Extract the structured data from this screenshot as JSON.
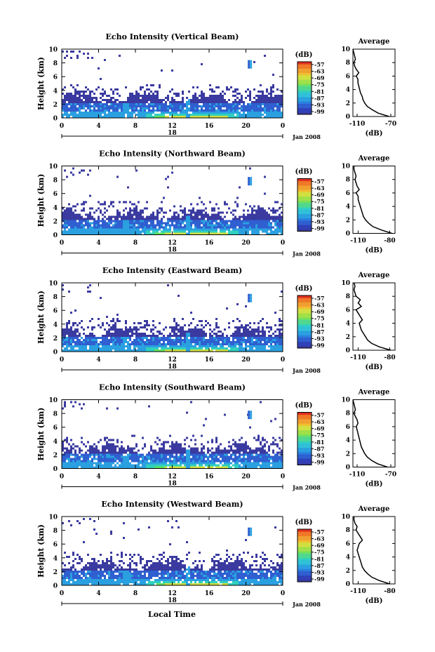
{
  "figure": {
    "xlabel": "Local Time",
    "date_label": "Jan 2008",
    "cbar_unit": "(dB)",
    "cbar_ticks": [
      "-57",
      "-63",
      "-69",
      "-75",
      "-81",
      "-87",
      "-93",
      "-99"
    ],
    "avg_title": "Average",
    "avg_xlabel": "(dB)",
    "colors": [
      "#3a3aa0",
      "#2f5fd0",
      "#2aa0e0",
      "#30d0c0",
      "#60e060",
      "#d0e040",
      "#f0a030",
      "#e03020"
    ]
  },
  "chart_data": [
    {
      "type": "heatmap",
      "title": "Echo Intensity (Vertical Beam)",
      "ylabel": "Height (km)",
      "day": "18",
      "x_ticks": [
        "0",
        "4",
        "8",
        "12",
        "16",
        "20",
        "0"
      ],
      "y_ticks": [
        "0",
        "2",
        "4",
        "6",
        "8",
        "10"
      ],
      "xlim": [
        0,
        24
      ],
      "ylim": [
        0,
        10
      ],
      "zlim": [
        -99,
        -57
      ],
      "average_profile": {
        "x_ticks": [
          "-110",
          "-70"
        ],
        "xlim": [
          -115,
          -65
        ],
        "heights": [
          0,
          0.5,
          1,
          1.5,
          2,
          2.5,
          3,
          3.5,
          4,
          4.5,
          5,
          5.5,
          6,
          6.5,
          7,
          7.5,
          8,
          8.5,
          9,
          9.5,
          10
        ],
        "values": [
          -72,
          -85,
          -92,
          -98,
          -101,
          -103,
          -104,
          -106,
          -107,
          -108,
          -109,
          -109,
          -111,
          -108,
          -111,
          -113,
          -114,
          -112,
          -113,
          -114,
          -115
        ]
      }
    },
    {
      "type": "heatmap",
      "title": "Echo Intensity (Northward Beam)",
      "ylabel": "Height (km)",
      "day": "18",
      "x_ticks": [
        "0",
        "4",
        "8",
        "12",
        "16",
        "20",
        "0"
      ],
      "y_ticks": [
        "0",
        "2",
        "4",
        "6",
        "8",
        "10"
      ],
      "xlim": [
        0,
        24
      ],
      "ylim": [
        0,
        10
      ],
      "zlim": [
        -99,
        -57
      ],
      "average_profile": {
        "x_ticks": [
          "-110",
          "-80"
        ],
        "xlim": [
          -115,
          -75
        ],
        "heights": [
          0,
          0.5,
          1,
          1.5,
          2,
          2.5,
          3,
          3.5,
          4,
          4.5,
          5,
          5.5,
          6,
          6.5,
          7,
          7.5,
          8,
          8.5,
          9,
          9.5,
          10
        ],
        "values": [
          -78,
          -88,
          -96,
          -100,
          -103,
          -105,
          -106,
          -107,
          -108,
          -109,
          -110,
          -110,
          -112,
          -109,
          -111,
          -112,
          -113,
          -112,
          -113,
          -114,
          -114
        ]
      }
    },
    {
      "type": "heatmap",
      "title": "Echo Intensity (Eastward Beam)",
      "ylabel": "Height (km)",
      "day": "18",
      "x_ticks": [
        "0",
        "4",
        "8",
        "12",
        "16",
        "20",
        "0"
      ],
      "y_ticks": [
        "0",
        "2",
        "4",
        "6",
        "8",
        "10"
      ],
      "xlim": [
        0,
        24
      ],
      "ylim": [
        0,
        10
      ],
      "zlim": [
        -99,
        -57
      ],
      "average_profile": {
        "x_ticks": [
          "-110",
          "-80"
        ],
        "xlim": [
          -115,
          -75
        ],
        "heights": [
          0,
          0.5,
          1,
          1.5,
          2,
          2.5,
          3,
          3.5,
          4,
          4.5,
          5,
          5.5,
          6,
          6.5,
          7,
          7.5,
          8,
          8.5,
          9,
          9.5,
          10
        ],
        "values": [
          -79,
          -90,
          -97,
          -101,
          -103,
          -105,
          -107,
          -108,
          -109,
          -106,
          -108,
          -110,
          -112,
          -107,
          -110,
          -108,
          -112,
          -113,
          -114,
          -113,
          -114
        ]
      }
    },
    {
      "type": "heatmap",
      "title": "Echo Intensity (Southward Beam)",
      "ylabel": "Height (km)",
      "day": "18",
      "x_ticks": [
        "0",
        "4",
        "8",
        "12",
        "16",
        "20",
        "0"
      ],
      "y_ticks": [
        "0",
        "2",
        "4",
        "6",
        "8",
        "10"
      ],
      "xlim": [
        0,
        24
      ],
      "ylim": [
        0,
        10
      ],
      "zlim": [
        -99,
        -57
      ],
      "average_profile": {
        "x_ticks": [
          "-110",
          "-70"
        ],
        "xlim": [
          -115,
          -65
        ],
        "heights": [
          0,
          0.5,
          1,
          1.5,
          2,
          2.5,
          3,
          3.5,
          4,
          4.5,
          5,
          5.5,
          6,
          6.5,
          7,
          7.5,
          8,
          8.5,
          9,
          9.5,
          10
        ],
        "values": [
          -74,
          -86,
          -93,
          -98,
          -101,
          -103,
          -105,
          -106,
          -107,
          -108,
          -109,
          -110,
          -111,
          -109,
          -110,
          -112,
          -114,
          -112,
          -113,
          -114,
          -115
        ]
      }
    },
    {
      "type": "heatmap",
      "title": "Echo Intensity (Westward Beam)",
      "ylabel": "Height (km)",
      "day": "18",
      "x_ticks": [
        "0",
        "4",
        "8",
        "12",
        "16",
        "20",
        "0"
      ],
      "y_ticks": [
        "0",
        "2",
        "4",
        "6",
        "8",
        "10"
      ],
      "xlim": [
        0,
        24
      ],
      "ylim": [
        0,
        10
      ],
      "zlim": [
        -99,
        -57
      ],
      "average_profile": {
        "x_ticks": [
          "-110",
          "-80"
        ],
        "xlim": [
          -115,
          -75
        ],
        "heights": [
          0,
          0.5,
          1,
          1.5,
          2,
          2.5,
          3,
          3.5,
          4,
          4.5,
          5,
          5.5,
          6,
          6.5,
          7,
          7.5,
          8,
          8.5,
          9,
          9.5,
          10
        ],
        "values": [
          -80,
          -90,
          -97,
          -101,
          -104,
          -106,
          -107,
          -108,
          -109,
          -110,
          -111,
          -110,
          -109,
          -106,
          -108,
          -110,
          -112,
          -111,
          -113,
          -114,
          -114
        ]
      }
    }
  ]
}
